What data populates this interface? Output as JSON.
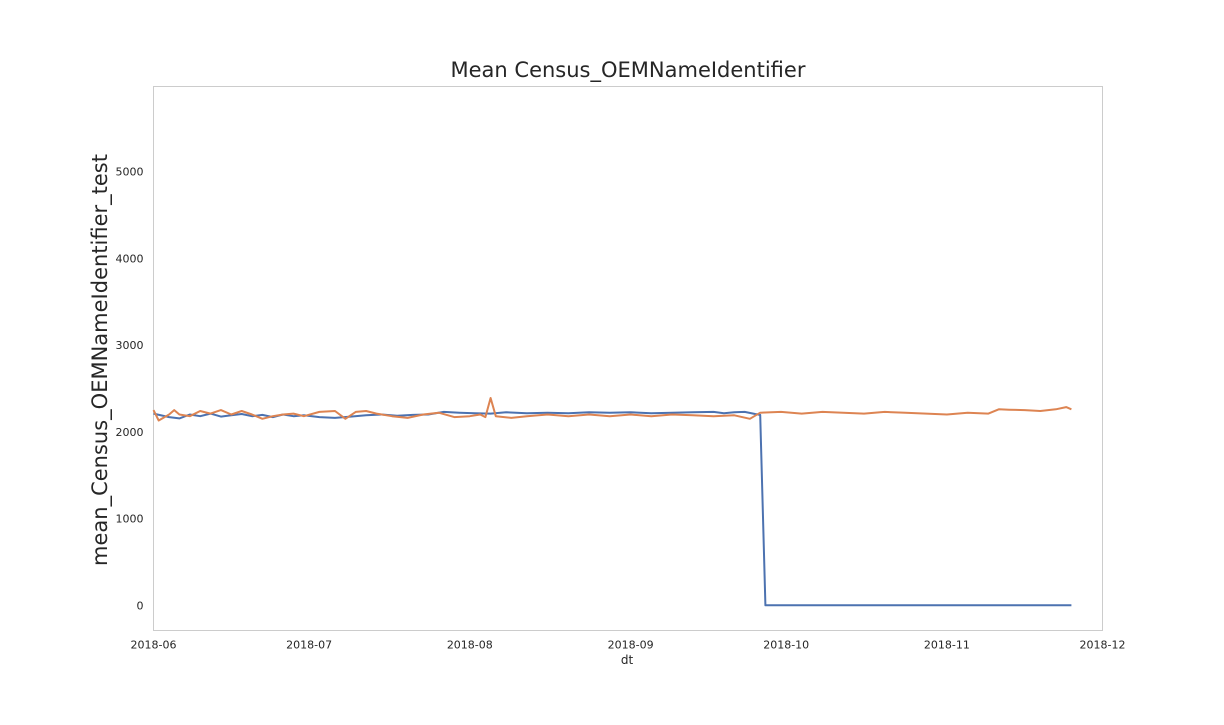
{
  "chart_data": {
    "type": "line",
    "title": "Mean Census_OEMNameIdentifier",
    "xlabel": "dt",
    "ylabel": "mean_Census_OEMNameIdentifier_test",
    "xlim": [
      "2018-06-01",
      "2018-12-01"
    ],
    "ylim": [
      -290,
      5980
    ],
    "x_ticks": [
      "2018-06",
      "2018-07",
      "2018-08",
      "2018-09",
      "2018-10",
      "2018-11",
      "2018-12"
    ],
    "y_ticks": [
      0,
      1000,
      2000,
      3000,
      4000,
      5000
    ],
    "grid": false,
    "legend": "none",
    "colors": [
      "#4c72b0",
      "#dd8452"
    ],
    "series": [
      {
        "color": "#4c72b0",
        "points": [
          [
            "2018-06-01",
            2210
          ],
          [
            "2018-06-04",
            2170
          ],
          [
            "2018-06-06",
            2155
          ],
          [
            "2018-06-08",
            2200
          ],
          [
            "2018-06-10",
            2180
          ],
          [
            "2018-06-12",
            2210
          ],
          [
            "2018-06-14",
            2175
          ],
          [
            "2018-06-16",
            2190
          ],
          [
            "2018-06-18",
            2205
          ],
          [
            "2018-06-20",
            2180
          ],
          [
            "2018-06-22",
            2195
          ],
          [
            "2018-06-24",
            2170
          ],
          [
            "2018-06-26",
            2200
          ],
          [
            "2018-06-28",
            2180
          ],
          [
            "2018-06-30",
            2190
          ],
          [
            "2018-07-03",
            2170
          ],
          [
            "2018-07-06",
            2160
          ],
          [
            "2018-07-09",
            2175
          ],
          [
            "2018-07-12",
            2190
          ],
          [
            "2018-07-15",
            2200
          ],
          [
            "2018-07-18",
            2185
          ],
          [
            "2018-07-21",
            2195
          ],
          [
            "2018-07-24",
            2200
          ],
          [
            "2018-07-27",
            2230
          ],
          [
            "2018-07-30",
            2220
          ],
          [
            "2018-08-02",
            2215
          ],
          [
            "2018-08-05",
            2210
          ],
          [
            "2018-08-08",
            2225
          ],
          [
            "2018-08-12",
            2215
          ],
          [
            "2018-08-16",
            2220
          ],
          [
            "2018-08-20",
            2215
          ],
          [
            "2018-08-24",
            2225
          ],
          [
            "2018-08-28",
            2220
          ],
          [
            "2018-09-01",
            2225
          ],
          [
            "2018-09-05",
            2215
          ],
          [
            "2018-09-09",
            2220
          ],
          [
            "2018-09-13",
            2225
          ],
          [
            "2018-09-17",
            2230
          ],
          [
            "2018-09-19",
            2215
          ],
          [
            "2018-09-21",
            2225
          ],
          [
            "2018-09-23",
            2230
          ],
          [
            "2018-09-25",
            2205
          ],
          [
            "2018-09-26",
            2195
          ],
          [
            "2018-09-27",
            0
          ],
          [
            "2018-11-25",
            0
          ]
        ]
      },
      {
        "color": "#dd8452",
        "points": [
          [
            "2018-06-01",
            2250
          ],
          [
            "2018-06-02",
            2130
          ],
          [
            "2018-06-04",
            2200
          ],
          [
            "2018-06-05",
            2250
          ],
          [
            "2018-06-06",
            2200
          ],
          [
            "2018-06-08",
            2180
          ],
          [
            "2018-06-10",
            2240
          ],
          [
            "2018-06-12",
            2210
          ],
          [
            "2018-06-14",
            2250
          ],
          [
            "2018-06-16",
            2200
          ],
          [
            "2018-06-18",
            2240
          ],
          [
            "2018-06-20",
            2200
          ],
          [
            "2018-06-22",
            2150
          ],
          [
            "2018-06-24",
            2180
          ],
          [
            "2018-06-26",
            2200
          ],
          [
            "2018-06-28",
            2210
          ],
          [
            "2018-06-30",
            2180
          ],
          [
            "2018-07-03",
            2230
          ],
          [
            "2018-07-06",
            2240
          ],
          [
            "2018-07-08",
            2150
          ],
          [
            "2018-07-10",
            2230
          ],
          [
            "2018-07-12",
            2240
          ],
          [
            "2018-07-14",
            2210
          ],
          [
            "2018-07-17",
            2180
          ],
          [
            "2018-07-20",
            2160
          ],
          [
            "2018-07-23",
            2200
          ],
          [
            "2018-07-26",
            2220
          ],
          [
            "2018-07-29",
            2170
          ],
          [
            "2018-08-01",
            2180
          ],
          [
            "2018-08-03",
            2200
          ],
          [
            "2018-08-04",
            2170
          ],
          [
            "2018-08-05",
            2390
          ],
          [
            "2018-08-06",
            2180
          ],
          [
            "2018-08-09",
            2160
          ],
          [
            "2018-08-12",
            2180
          ],
          [
            "2018-08-16",
            2200
          ],
          [
            "2018-08-20",
            2180
          ],
          [
            "2018-08-24",
            2200
          ],
          [
            "2018-08-28",
            2180
          ],
          [
            "2018-09-01",
            2200
          ],
          [
            "2018-09-05",
            2180
          ],
          [
            "2018-09-09",
            2200
          ],
          [
            "2018-09-13",
            2190
          ],
          [
            "2018-09-17",
            2180
          ],
          [
            "2018-09-21",
            2190
          ],
          [
            "2018-09-24",
            2150
          ],
          [
            "2018-09-26",
            2220
          ],
          [
            "2018-09-30",
            2230
          ],
          [
            "2018-10-04",
            2210
          ],
          [
            "2018-10-08",
            2230
          ],
          [
            "2018-10-12",
            2220
          ],
          [
            "2018-10-16",
            2210
          ],
          [
            "2018-10-20",
            2230
          ],
          [
            "2018-10-24",
            2220
          ],
          [
            "2018-10-28",
            2210
          ],
          [
            "2018-11-01",
            2200
          ],
          [
            "2018-11-05",
            2220
          ],
          [
            "2018-11-09",
            2210
          ],
          [
            "2018-11-11",
            2260
          ],
          [
            "2018-11-13",
            2255
          ],
          [
            "2018-11-16",
            2250
          ],
          [
            "2018-11-19",
            2240
          ],
          [
            "2018-11-22",
            2260
          ],
          [
            "2018-11-24",
            2285
          ],
          [
            "2018-11-25",
            2260
          ]
        ]
      }
    ]
  }
}
